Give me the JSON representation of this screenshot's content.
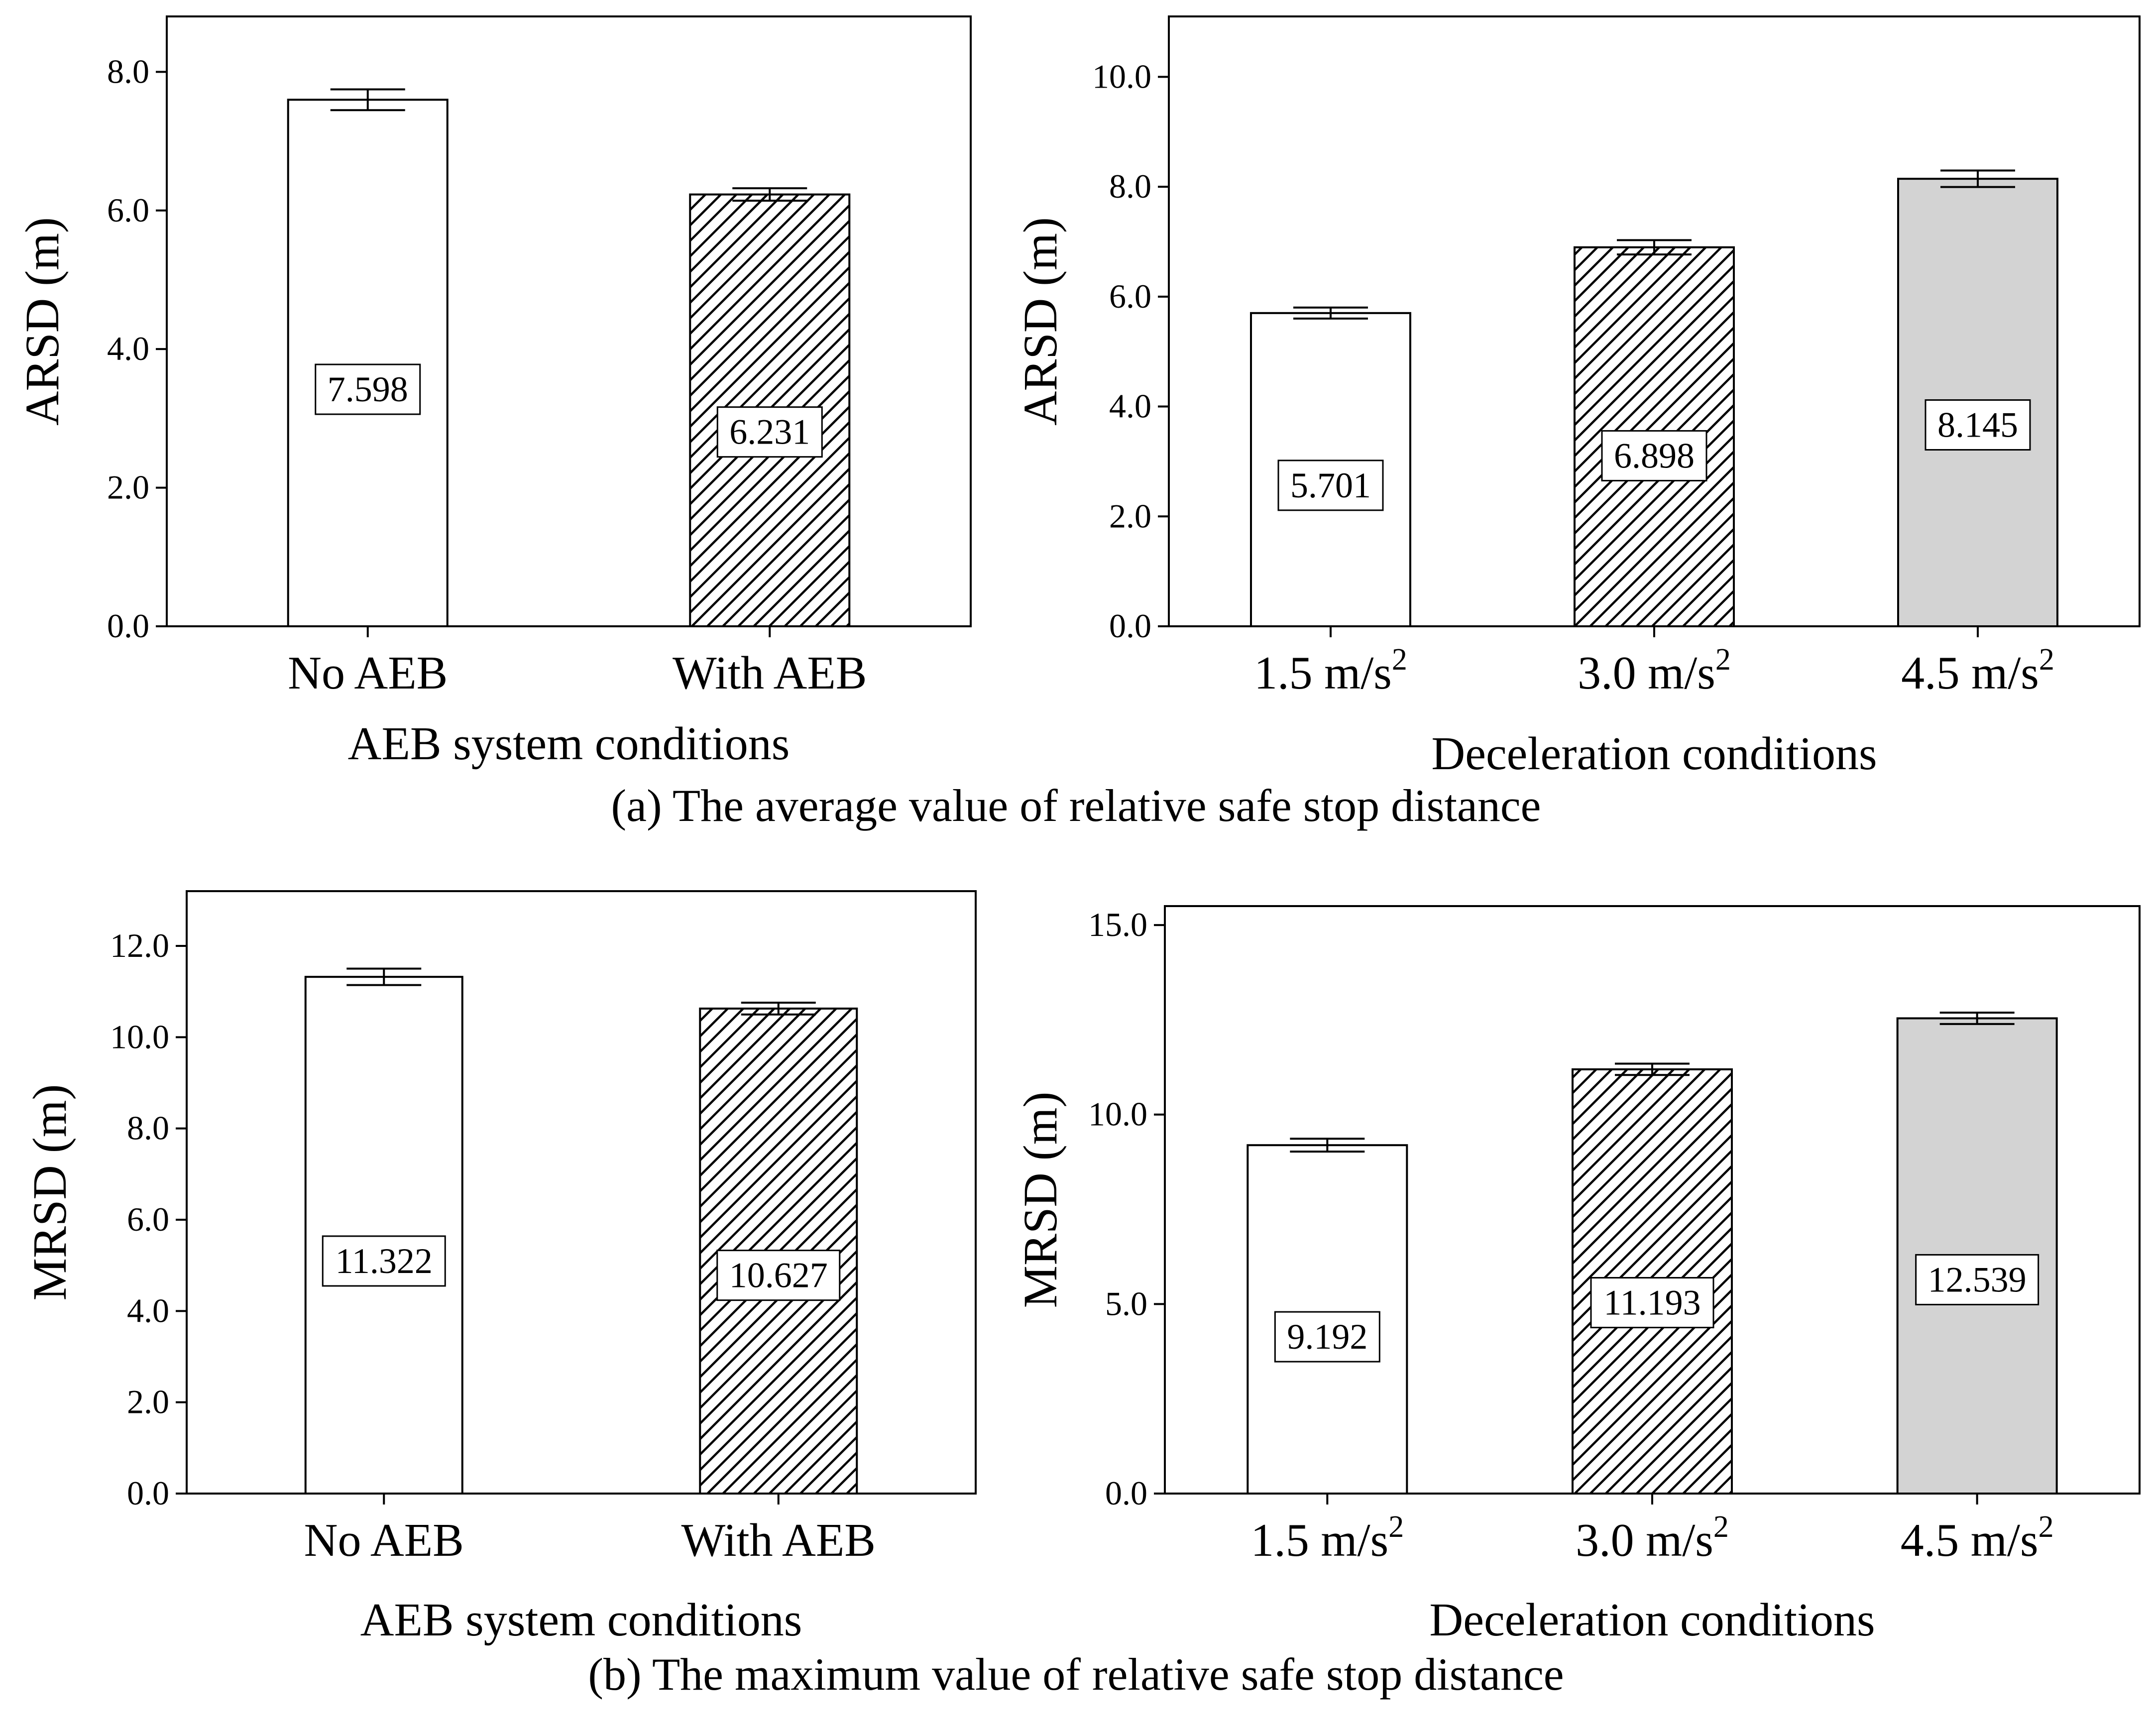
{
  "captions": {
    "a": "(a) The average value of relative safe stop distance",
    "b": "(b) The maximum value of relative safe stop distance"
  },
  "colors": {
    "no_fill": "#ffffff",
    "hatch": "#000000",
    "gray_fill": "#d3d3d3",
    "axis": "#000000"
  },
  "chart_data": [
    {
      "type": "bar",
      "panel": "a-left",
      "xlabel": "AEB system conditions",
      "ylabel": "ARSD (m)",
      "ylim": [
        0,
        8.8
      ],
      "yticks": [
        0.0,
        2.0,
        4.0,
        6.0,
        8.0
      ],
      "categories": [
        "No AEB",
        "With AEB"
      ],
      "values": [
        7.598,
        6.231
      ],
      "error": [
        0.15,
        0.09
      ],
      "fills": [
        "white",
        "hatch"
      ]
    },
    {
      "type": "bar",
      "panel": "a-right",
      "xlabel": "Deceleration conditions",
      "ylabel": "ARSD (m)",
      "ylim": [
        0,
        11.1
      ],
      "yticks": [
        0.0,
        2.0,
        4.0,
        6.0,
        8.0,
        10.0
      ],
      "categories": [
        "1.5 m/s",
        "3.0 m/s",
        "4.5 m/s"
      ],
      "category_superscripts": [
        "2",
        "2",
        "2"
      ],
      "values": [
        5.701,
        6.898,
        8.145
      ],
      "error": [
        0.1,
        0.13,
        0.15
      ],
      "fills": [
        "white",
        "hatch",
        "gray"
      ]
    },
    {
      "type": "bar",
      "panel": "b-left",
      "xlabel": "AEB system conditions",
      "ylabel": "MRSD (m)",
      "ylim": [
        0,
        13.2
      ],
      "yticks": [
        0.0,
        2.0,
        4.0,
        6.0,
        8.0,
        10.0,
        12.0
      ],
      "categories": [
        "No AEB",
        "With AEB"
      ],
      "values": [
        11.322,
        10.627
      ],
      "error": [
        0.18,
        0.13
      ],
      "fills": [
        "white",
        "hatch"
      ]
    },
    {
      "type": "bar",
      "panel": "b-right",
      "xlabel": "Deceleration conditions",
      "ylabel": "MRSD (m)",
      "ylim": [
        0,
        15.5
      ],
      "yticks": [
        0.0,
        5.0,
        10.0,
        15.0
      ],
      "categories": [
        "1.5 m/s",
        "3.0 m/s",
        "4.5 m/s"
      ],
      "category_superscripts": [
        "2",
        "2",
        "2"
      ],
      "values": [
        9.192,
        11.193,
        12.539
      ],
      "error": [
        0.17,
        0.15,
        0.15
      ],
      "fills": [
        "white",
        "hatch",
        "gray"
      ]
    }
  ]
}
